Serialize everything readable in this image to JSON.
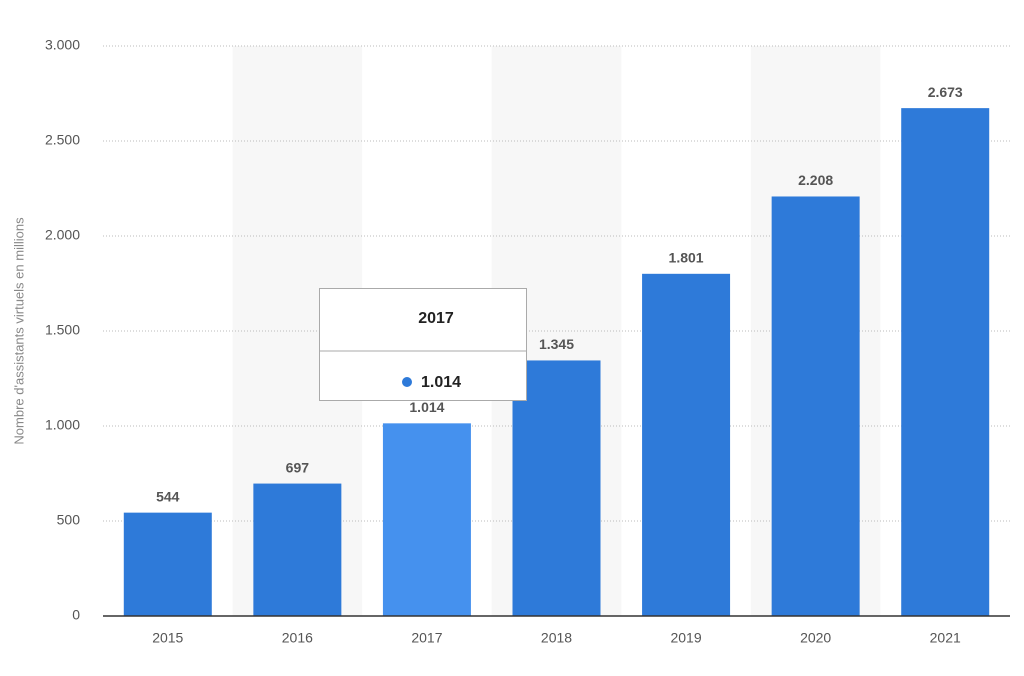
{
  "chart_data": {
    "type": "bar",
    "y_label": "Nombre d'assistants virtuels en millions",
    "categories": [
      "2015",
      "2016",
      "2017",
      "2018",
      "2019",
      "2020",
      "2021"
    ],
    "values": [
      544,
      697,
      1014,
      1345,
      1801,
      2208,
      2673
    ],
    "value_labels": [
      "544",
      "697",
      "1.014",
      "1.345",
      "1.801",
      "2.208",
      "2.673"
    ],
    "colors": [
      "#2e7ad9",
      "#2e7ad9",
      "#4591ee",
      "#2e7ad9",
      "#2e7ad9",
      "#2e7ad9",
      "#2e7ad9"
    ],
    "ylim": [
      0,
      3000
    ],
    "yticks": [
      0,
      500,
      {
        "value": 1000,
        "label": "1.000"
      },
      {
        "value": 1500,
        "label": "1.500"
      },
      {
        "value": 2000,
        "label": "2.000"
      },
      {
        "value": 2500,
        "label": "2.500"
      },
      {
        "value": 3000,
        "label": "3.000"
      }
    ],
    "grid": true
  }
}
